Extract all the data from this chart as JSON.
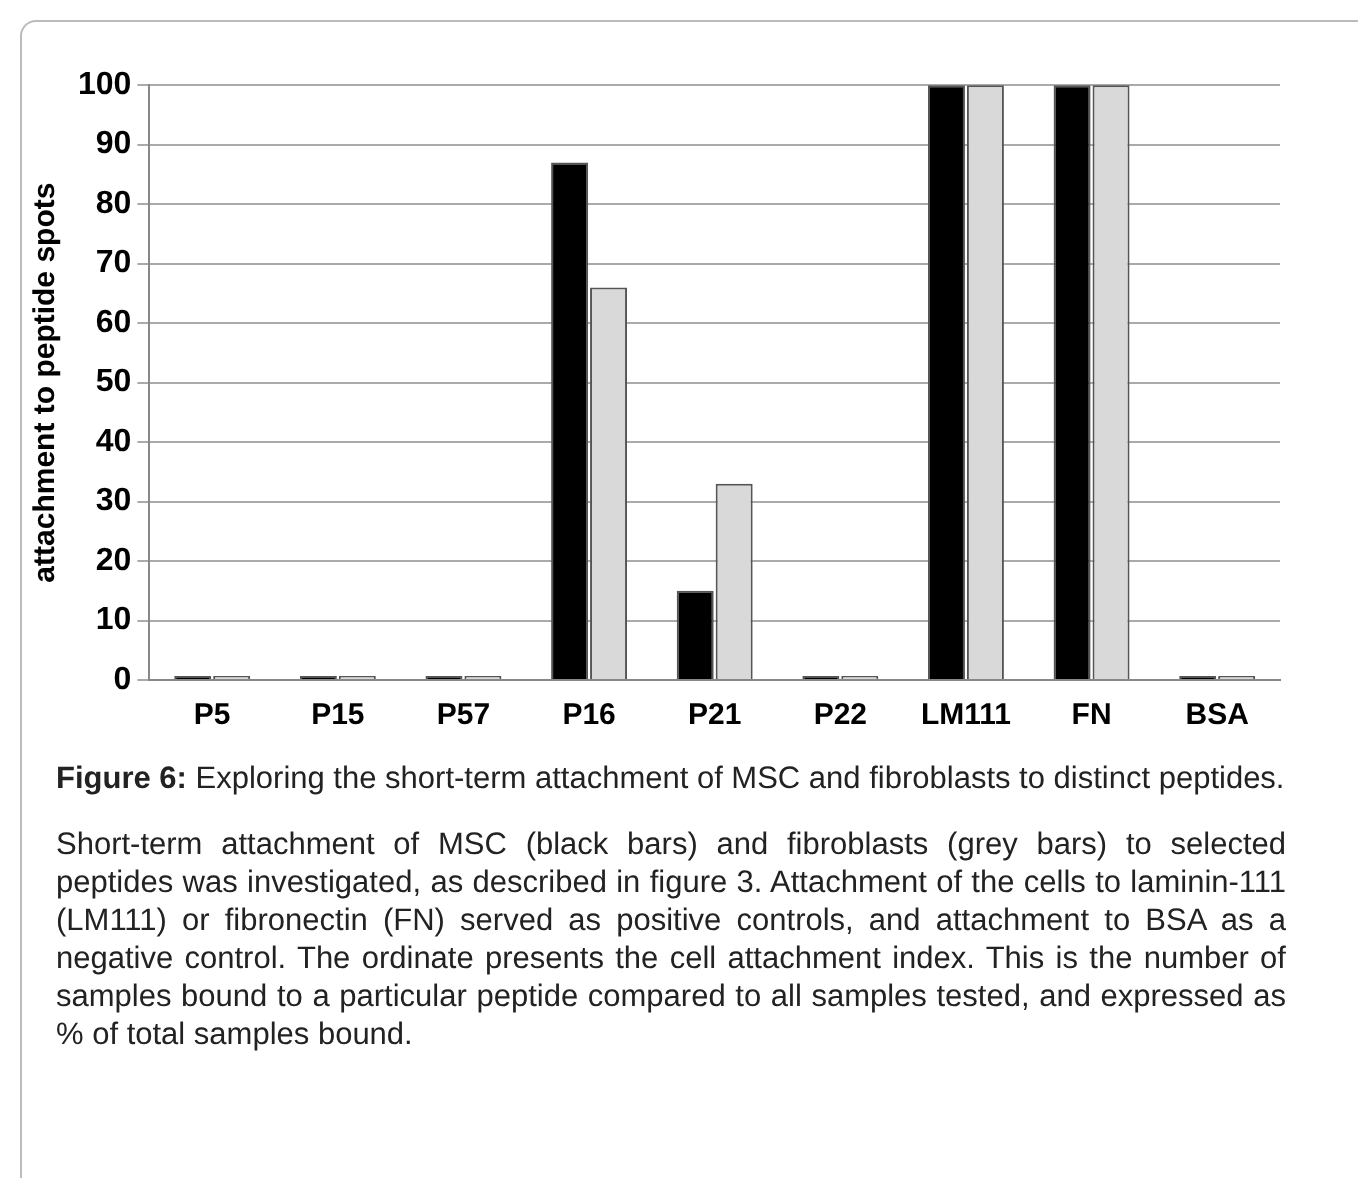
{
  "chart_data": {
    "type": "bar",
    "ylabel": "attachment to peptide spots",
    "categories": [
      "P5",
      "P15",
      "P57",
      "P16",
      "P21",
      "P22",
      "LM111",
      "FN",
      "BSA"
    ],
    "series": [
      {
        "color": "#000000",
        "values": [
          0,
          0,
          0,
          87,
          15,
          0,
          100,
          100,
          0
        ]
      },
      {
        "color": "#d9d9d9",
        "values": [
          0,
          0,
          0,
          66,
          33,
          0,
          100,
          100,
          0
        ]
      }
    ],
    "ylim": [
      0,
      100
    ],
    "yticks": [
      0,
      10,
      20,
      30,
      40,
      50,
      60,
      70,
      80,
      90,
      100
    ],
    "grid": "y",
    "legend": false,
    "annotations": [
      "Figure 6: Exploring the short-term attachment of MSC and fibroblasts to distinct peptides.",
      "Short-term attachment of MSC (black bars) and fibroblasts (grey bars) to selected peptides was investigated, as described in figure 3. Attachment of the cells to laminin-111 (LM111) or fibronectin (FN) served as positive controls, and attachment to BSA as a negative control. The ordinate presents the cell attachment index. This is the number of samples bound to a particular peptide compared to all samples tested, and expressed as % of total samples bound."
    ]
  }
}
